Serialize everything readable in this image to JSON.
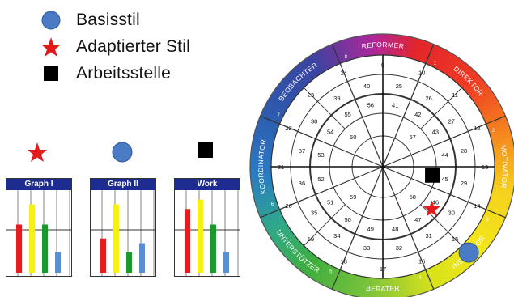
{
  "legend": {
    "items": [
      {
        "label": "Basisstil",
        "icon": "blue-circle"
      },
      {
        "label": "Adaptierter Stil",
        "icon": "red-star"
      },
      {
        "label": "Arbeitsstelle",
        "icon": "black-square"
      }
    ]
  },
  "colors": {
    "basis": "#4a7bc4",
    "adaptiert": "#e21a1a",
    "arbeit": "#000000",
    "panel_header": "#1f2c8f",
    "bar_red": "#e81c1c",
    "bar_yellow": "#f5ef1a",
    "bar_green": "#1a9a2a",
    "bar_blue": "#5b8ed0"
  },
  "panels": [
    {
      "title": "Graph I",
      "marker": "red-star",
      "values": [
        0.62,
        0.88,
        0.62,
        0.26
      ]
    },
    {
      "title": "Graph II",
      "marker": "blue-circle",
      "values": [
        0.44,
        0.88,
        0.26,
        0.38
      ]
    },
    {
      "title": "Work",
      "marker": "black-square",
      "values": [
        0.82,
        0.94,
        0.62,
        0.26
      ]
    }
  ],
  "wheel": {
    "sectors": [
      {
        "name": "REFORMER",
        "num": "1"
      },
      {
        "name": "DIREKTOR",
        "num": "1"
      },
      {
        "name": "MOTIVATOR",
        "num": "2"
      },
      {
        "name": "INSPIRATOR",
        "num": "3"
      },
      {
        "name": "BERATER",
        "num": "4"
      },
      {
        "name": "UNTERSTÜTZER",
        "num": "5"
      },
      {
        "name": "KOORDINATOR",
        "num": "6"
      },
      {
        "name": "BEOBACHTER",
        "num": "7"
      }
    ],
    "outer_nums": [
      "8",
      "1",
      "2",
      "3",
      "4",
      "5",
      "6",
      "7"
    ],
    "ring1": [
      "9",
      "10",
      "11",
      "12",
      "13",
      "14",
      "15",
      "16",
      "17",
      "18",
      "19",
      "20",
      "21",
      "22",
      "23",
      "24"
    ],
    "ring2": [
      "25",
      "26",
      "27",
      "28",
      "29",
      "30",
      "31",
      "32",
      "33",
      "34",
      "35",
      "36",
      "37",
      "38",
      "39",
      "40"
    ],
    "ring3": [
      "41",
      "42",
      "43",
      "44",
      "45",
      "46",
      "47",
      "48",
      "49",
      "50",
      "51",
      "52",
      "53",
      "54",
      "55",
      "56"
    ],
    "ring4": [
      "57",
      "58",
      "59",
      "60"
    ],
    "markers": {
      "basis": "Basisstil",
      "adaptiert": "Adaptierter Stil",
      "arbeit": "Arbeitsstelle"
    }
  }
}
